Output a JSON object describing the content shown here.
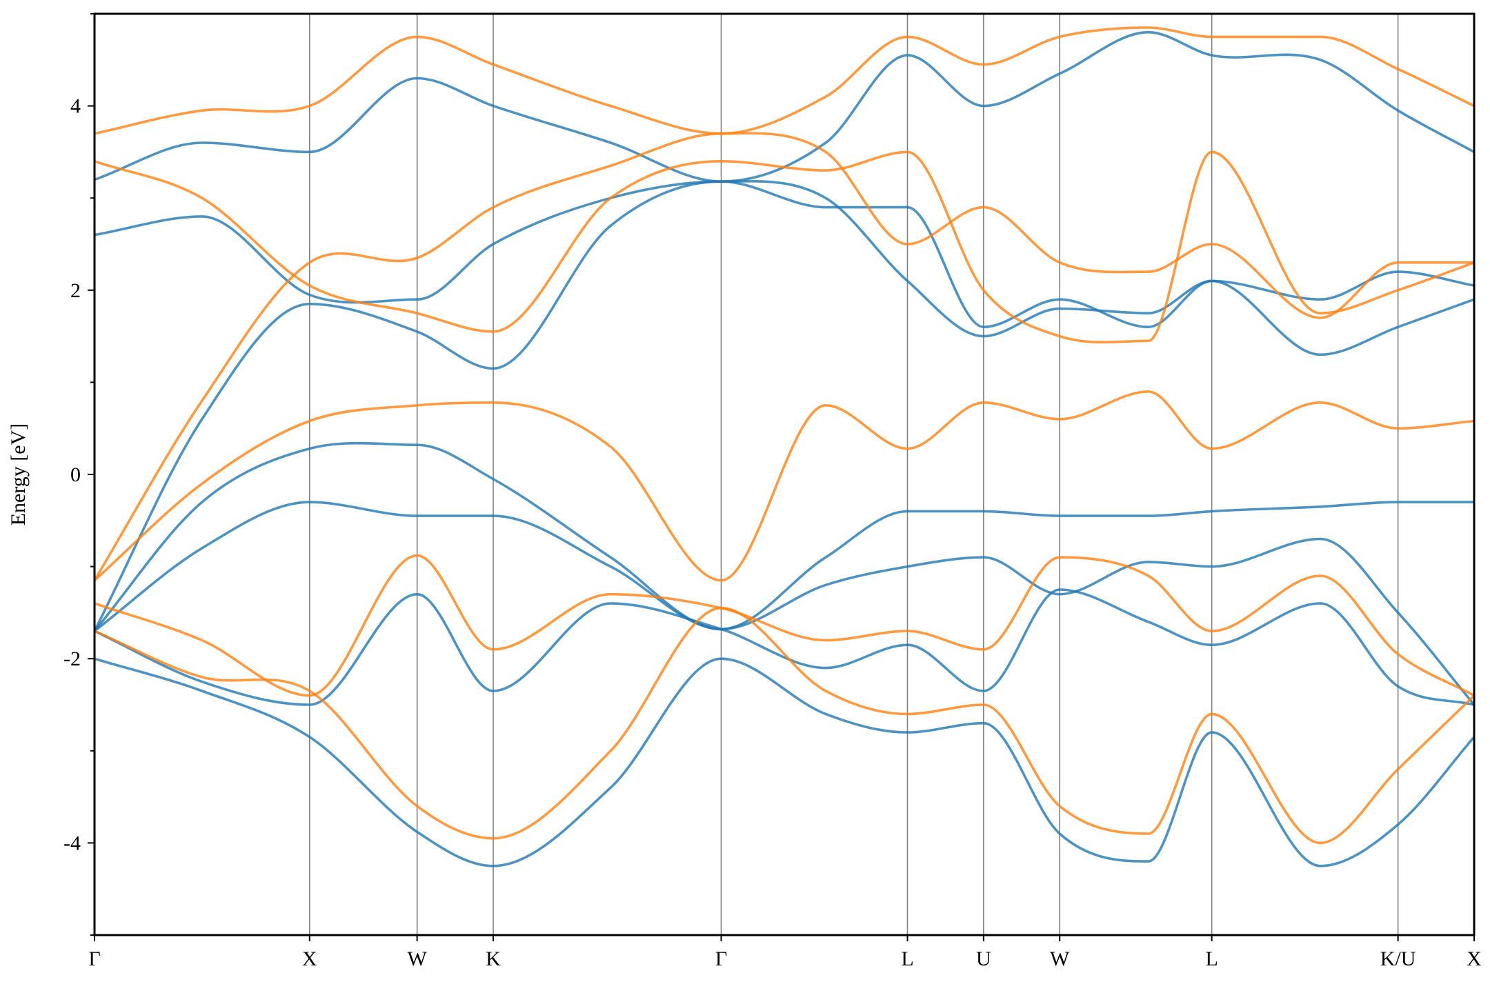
{
  "chart_data": {
    "type": "line",
    "title": "",
    "xlabel": "",
    "ylabel": "Energy [eV]",
    "ylim": [
      -5,
      5
    ],
    "yticks": [
      -4,
      -2,
      0,
      2,
      4
    ],
    "ytick_labels": [
      "-4",
      "-2",
      "0",
      "2",
      "4"
    ],
    "grid": false,
    "legend": "none",
    "kpath": {
      "labels": [
        "Γ",
        "X",
        "W",
        "K",
        "Γ",
        "L",
        "U",
        "W",
        "L",
        "K/U",
        "X"
      ],
      "positions": [
        0.0,
        1.0,
        1.5,
        1.854,
        2.914,
        3.78,
        4.134,
        4.488,
        5.195,
        6.061,
        6.415
      ]
    },
    "colors": {
      "spin_up": "#1f77b4",
      "spin_down": "#ff7f0e"
    },
    "series": [
      {
        "color_key": "spin_up",
        "x": [
          0.0,
          0.5,
          1.0,
          1.5,
          1.854,
          2.4,
          2.914,
          3.4,
          3.78,
          4.134,
          4.488,
          4.9,
          5.195,
          5.7,
          6.061,
          6.415
        ],
        "y": [
          -2.0,
          -2.35,
          -2.85,
          -3.88,
          -4.25,
          -3.4,
          -2.0,
          -2.6,
          -2.8,
          -2.7,
          -3.9,
          -4.2,
          -2.8,
          -4.25,
          -3.8,
          -2.85
        ]
      },
      {
        "color_key": "spin_up",
        "x": [
          0.0,
          0.5,
          1.0,
          1.5,
          1.854,
          2.4,
          2.914,
          3.4,
          3.78,
          4.134,
          4.488,
          4.9,
          5.195,
          5.7,
          6.061,
          6.415
        ],
        "y": [
          -1.7,
          -2.25,
          -2.5,
          -1.3,
          -2.35,
          -1.4,
          -1.68,
          -2.1,
          -1.85,
          -2.35,
          -1.25,
          -1.6,
          -1.85,
          -1.4,
          -2.3,
          -2.5
        ]
      },
      {
        "color_key": "spin_up",
        "x": [
          0.0,
          0.5,
          1.0,
          1.5,
          1.854,
          2.4,
          2.914,
          3.4,
          3.78,
          4.134,
          4.488,
          4.9,
          5.195,
          5.7,
          6.061,
          6.415
        ],
        "y": [
          -1.7,
          -0.8,
          -0.3,
          -0.45,
          -0.45,
          -1.0,
          -1.68,
          -1.2,
          -1.0,
          -0.9,
          -1.3,
          -0.95,
          -1.0,
          -0.7,
          -1.5,
          -2.5
        ]
      },
      {
        "color_key": "spin_up",
        "x": [
          0.0,
          0.5,
          1.0,
          1.5,
          1.854,
          2.4,
          2.914,
          3.4,
          3.78,
          4.134,
          4.488,
          4.9,
          5.195,
          5.7,
          6.061,
          6.415
        ],
        "y": [
          -1.7,
          -0.3,
          0.28,
          0.32,
          -0.05,
          -0.9,
          -1.68,
          -0.9,
          -0.4,
          -0.4,
          -0.45,
          -0.45,
          -0.4,
          -0.35,
          -0.3,
          -0.3
        ]
      },
      {
        "color_key": "spin_up",
        "x": [
          0.0,
          0.5,
          1.0,
          1.5,
          1.854,
          2.4,
          2.914,
          3.4,
          3.78,
          4.134,
          4.488,
          4.9,
          5.195,
          5.7,
          6.061,
          6.415
        ],
        "y": [
          -1.7,
          0.6,
          1.85,
          1.55,
          1.15,
          2.7,
          3.18,
          2.9,
          2.9,
          1.6,
          1.9,
          1.6,
          2.1,
          1.3,
          1.6,
          1.9
        ]
      },
      {
        "color_key": "spin_up",
        "x": [
          0.0,
          0.5,
          1.0,
          1.5,
          1.854,
          2.4,
          2.914,
          3.4,
          3.78,
          4.134,
          4.488,
          4.9,
          5.195,
          5.7,
          6.061,
          6.415
        ],
        "y": [
          2.6,
          2.8,
          1.95,
          1.9,
          2.5,
          3.0,
          3.18,
          3.0,
          2.1,
          1.5,
          1.8,
          1.75,
          2.1,
          1.9,
          2.2,
          2.05
        ]
      },
      {
        "color_key": "spin_up",
        "x": [
          0.0,
          0.5,
          1.0,
          1.5,
          1.854,
          2.4,
          2.914,
          3.4,
          3.78,
          4.134,
          4.488,
          4.9,
          5.195,
          5.7,
          6.061,
          6.415
        ],
        "y": [
          3.2,
          3.6,
          3.5,
          4.3,
          4.0,
          3.6,
          3.18,
          3.6,
          4.55,
          4.0,
          4.35,
          4.8,
          4.55,
          4.5,
          3.95,
          3.5
        ]
      },
      {
        "color_key": "spin_down",
        "x": [
          0.0,
          0.5,
          1.0,
          1.5,
          1.854,
          2.4,
          2.914,
          3.4,
          3.78,
          4.134,
          4.488,
          4.9,
          5.195,
          5.7,
          6.061,
          6.415
        ],
        "y": [
          -1.7,
          -2.2,
          -2.35,
          -3.6,
          -3.95,
          -3.0,
          -1.45,
          -2.35,
          -2.6,
          -2.5,
          -3.6,
          -3.9,
          -2.6,
          -4.0,
          -3.2,
          -2.4
        ]
      },
      {
        "color_key": "spin_down",
        "x": [
          0.0,
          0.5,
          1.0,
          1.5,
          1.854,
          2.4,
          2.914,
          3.4,
          3.78,
          4.134,
          4.488,
          4.9,
          5.195,
          5.7,
          6.061,
          6.415
        ],
        "y": [
          -1.4,
          -1.8,
          -2.4,
          -0.88,
          -1.9,
          -1.3,
          -1.45,
          -1.8,
          -1.7,
          -1.9,
          -0.9,
          -1.1,
          -1.7,
          -1.1,
          -1.95,
          -2.4
        ]
      },
      {
        "color_key": "spin_down",
        "x": [
          0.0,
          0.5,
          1.0,
          1.5,
          1.854,
          2.4,
          2.914,
          3.4,
          3.78,
          4.134,
          4.488,
          4.9,
          5.195,
          5.7,
          6.061,
          6.415
        ],
        "y": [
          -1.15,
          -0.1,
          0.58,
          0.75,
          0.78,
          0.3,
          -1.15,
          0.75,
          0.28,
          0.78,
          0.6,
          0.9,
          0.28,
          0.78,
          0.5,
          0.58
        ]
      },
      {
        "color_key": "spin_down",
        "x": [
          0.0,
          0.5,
          1.0,
          1.5,
          1.854,
          2.4,
          2.914,
          3.4,
          3.78,
          4.134,
          4.488,
          4.9,
          5.195,
          5.7,
          6.061,
          6.415
        ],
        "y": [
          -1.15,
          0.8,
          2.3,
          2.35,
          2.9,
          3.35,
          3.7,
          3.5,
          2.5,
          2.9,
          2.3,
          2.2,
          2.5,
          1.7,
          2.3,
          2.3
        ]
      },
      {
        "color_key": "spin_down",
        "x": [
          0.0,
          0.5,
          1.0,
          1.5,
          1.854,
          2.4,
          2.914,
          3.4,
          3.78,
          4.134,
          4.488,
          4.9,
          5.195,
          5.7,
          6.061,
          6.415
        ],
        "y": [
          3.4,
          3.0,
          2.05,
          1.75,
          1.55,
          3.0,
          3.4,
          3.3,
          3.5,
          2.0,
          1.5,
          1.45,
          3.5,
          1.75,
          2.0,
          2.3
        ]
      },
      {
        "color_key": "spin_down",
        "x": [
          0.0,
          0.5,
          1.0,
          1.5,
          1.854,
          2.4,
          2.914,
          3.4,
          3.78,
          4.134,
          4.488,
          4.9,
          5.195,
          5.7,
          6.061,
          6.415
        ],
        "y": [
          3.7,
          3.95,
          4.0,
          4.75,
          4.45,
          4.0,
          3.7,
          4.1,
          4.75,
          4.45,
          4.75,
          4.85,
          4.75,
          4.75,
          4.4,
          4.0
        ]
      }
    ]
  }
}
